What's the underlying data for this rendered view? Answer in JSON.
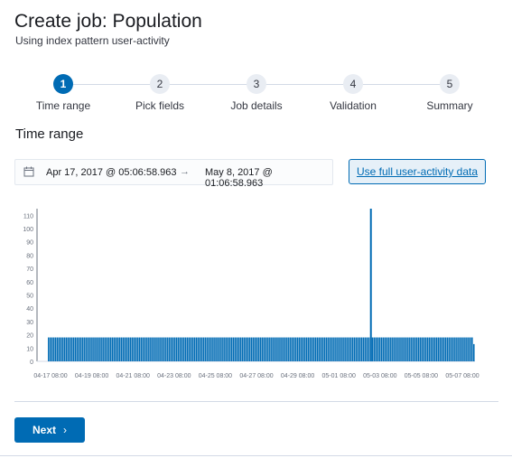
{
  "header": {
    "title": "Create job: Population",
    "subtitle": "Using index pattern user-activity"
  },
  "steps": [
    {
      "number": "1",
      "label": "Time range",
      "active": true
    },
    {
      "number": "2",
      "label": "Pick fields",
      "active": false
    },
    {
      "number": "3",
      "label": "Job details",
      "active": false
    },
    {
      "number": "4",
      "label": "Validation",
      "active": false
    },
    {
      "number": "5",
      "label": "Summary",
      "active": false
    }
  ],
  "time_range": {
    "section_title": "Time range",
    "calendar_icon": "calendar-icon",
    "start": "Apr 17, 2017 @ 05:06:58.963",
    "arrow": "→",
    "end": "May 8, 2017 @ 01:06:58.963",
    "full_data_button": "Use full user-activity data"
  },
  "chart_data": {
    "type": "bar",
    "x_tick_labels": [
      "04-17 08:00",
      "04-19 08:00",
      "04-21 08:00",
      "04-23 08:00",
      "04-25 08:00",
      "04-27 08:00",
      "04-29 08:00",
      "05-01 08:00",
      "05-03 08:00",
      "05-05 08:00",
      "05-07 08:00"
    ],
    "y_ticks": [
      0,
      10,
      20,
      30,
      40,
      50,
      60,
      70,
      80,
      90,
      100,
      110
    ],
    "ylim": [
      0,
      115
    ],
    "bar_color": "#006bb4",
    "typical_value": 18,
    "spike": {
      "x": "05-03 00:00",
      "value": 115
    },
    "last_bar_value": 13
  },
  "footer": {
    "next_label": "Next",
    "next_icon": "chevron-right-icon"
  },
  "colors": {
    "primary": "#006bb4",
    "inactive_step": "#e9edf3",
    "border": "#d3dae6"
  }
}
